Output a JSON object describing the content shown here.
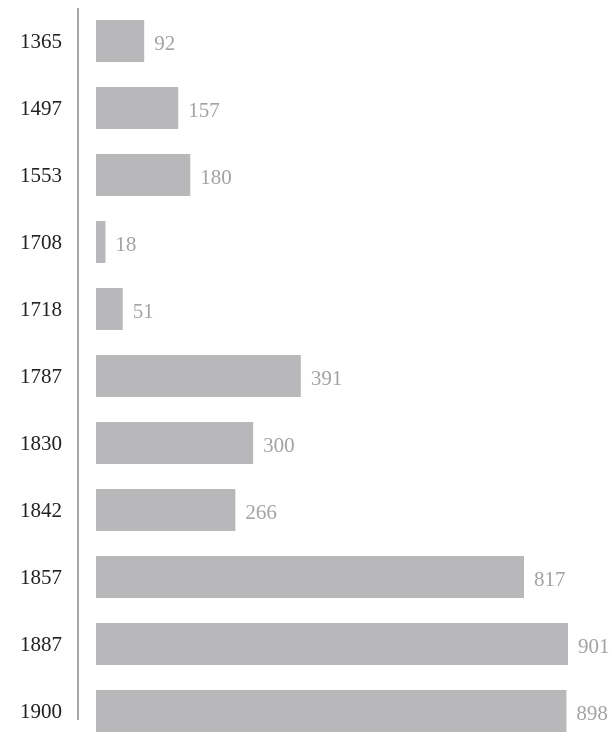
{
  "chart_data": {
    "type": "bar",
    "orientation": "horizontal",
    "categories": [
      "1365",
      "1497",
      "1553",
      "1708",
      "1718",
      "1787",
      "1830",
      "1842",
      "1857",
      "1887",
      "1900"
    ],
    "values": [
      92,
      157,
      180,
      18,
      51,
      391,
      300,
      266,
      817,
      901,
      898
    ],
    "title": "",
    "xlabel": "",
    "ylabel": "",
    "xlim": [
      0,
      901
    ],
    "grid": false,
    "legend": "none",
    "colors": {
      "bar": "#b8b8ba",
      "value_label": "#a3a3a5",
      "category_label": "#222222",
      "axis": "#8a8a8a"
    }
  }
}
